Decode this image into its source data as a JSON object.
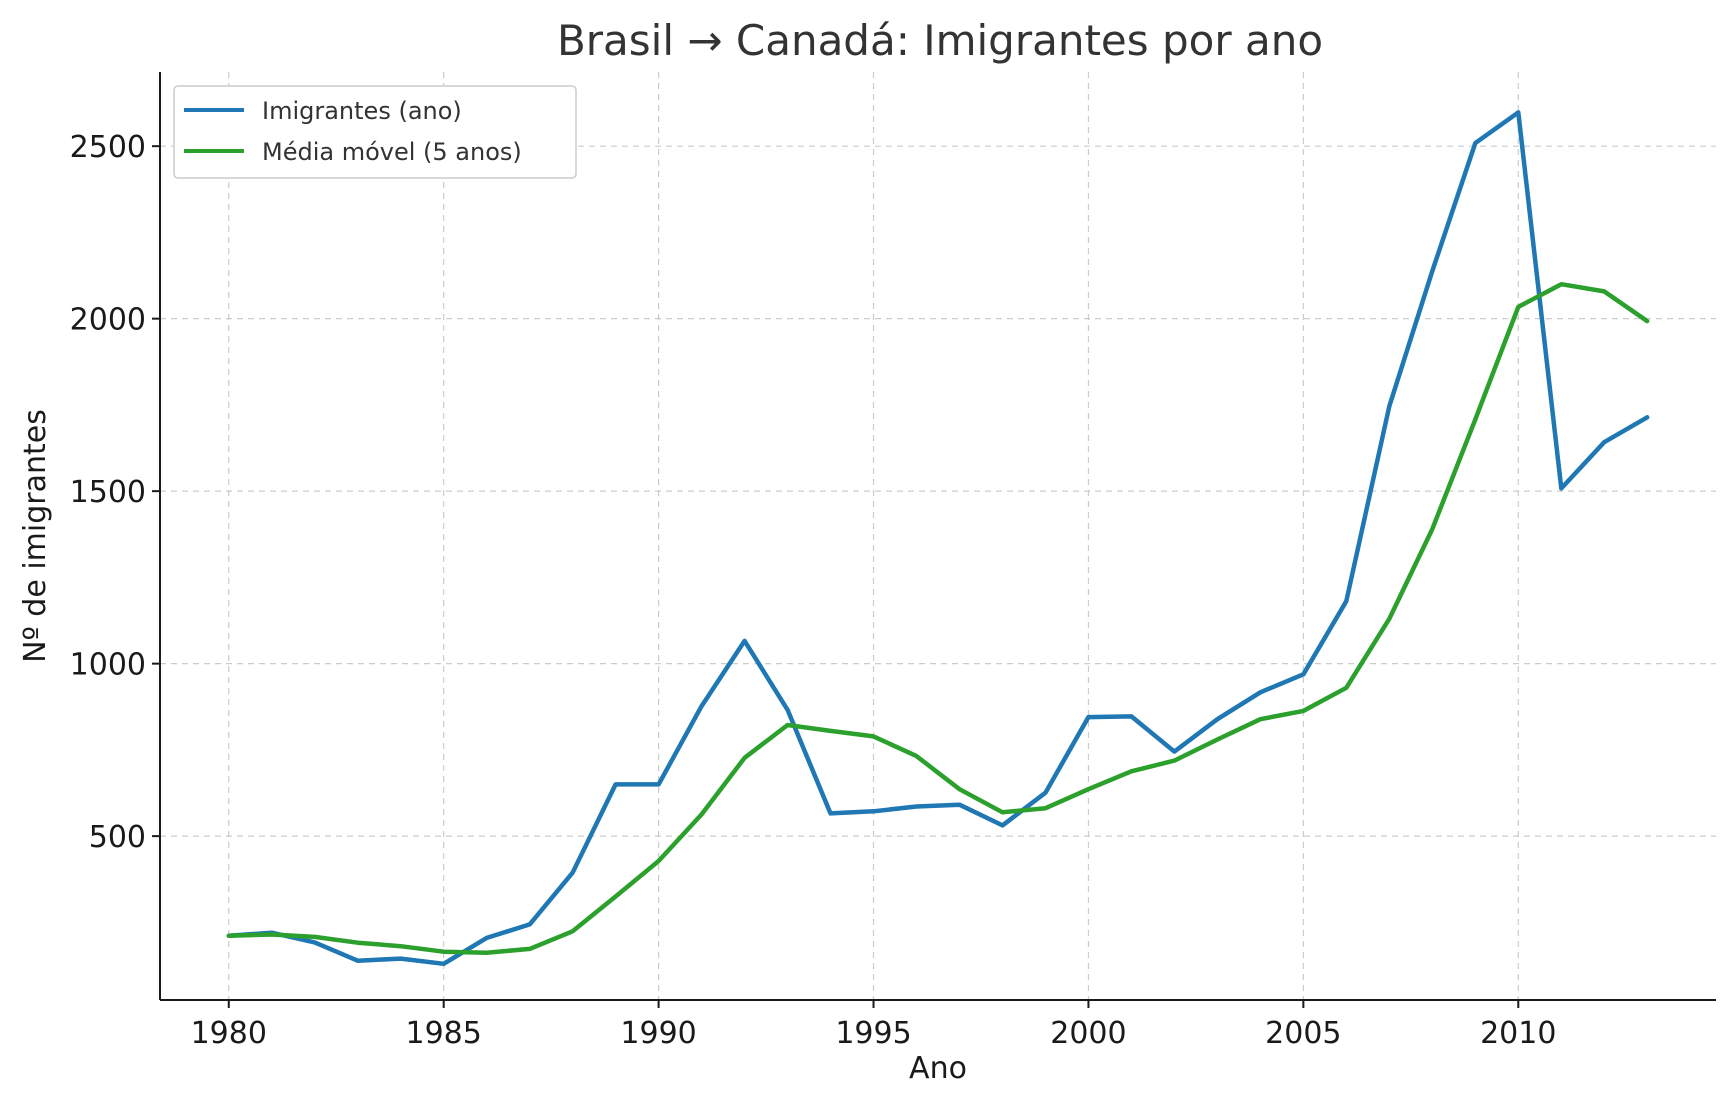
{
  "chart_data": {
    "type": "line",
    "title": "Brasil → Canadá: Imigrantes por ano",
    "xlabel": "Ano",
    "ylabel": "Nº de imigrantes",
    "xlim": [
      1978.4,
      2014.6
    ],
    "ylim": [
      25,
      2715
    ],
    "xticks": [
      1980,
      1985,
      1990,
      1995,
      2000,
      2005,
      2010
    ],
    "yticks": [
      500,
      1000,
      1500,
      2000,
      2500
    ],
    "grid": true,
    "legend_position": "top-left",
    "x": [
      1980,
      1981,
      1982,
      1983,
      1984,
      1985,
      1986,
      1987,
      1988,
      1989,
      1990,
      1991,
      1992,
      1993,
      1994,
      1995,
      1996,
      1997,
      1998,
      1999,
      2000,
      2001,
      2002,
      2003,
      2004,
      2005,
      2006,
      2007,
      2008,
      2009,
      2010,
      2011,
      2012,
      2013
    ],
    "series": [
      {
        "name": "Imigrantes (ano)",
        "color": "#1f77b4",
        "values": [
          211,
          220,
          192,
          139,
          145,
          130,
          205,
          244,
          394,
          650,
          650,
          877,
          1066,
          866,
          566,
          572,
          586,
          591,
          531,
          626,
          845,
          847,
          745,
          839,
          917,
          969,
          1181,
          1746,
          2138,
          2509,
          2598,
          1508,
          1642,
          1714
        ]
      },
      {
        "name": "Média móvel (5 anos)",
        "color": "#2ca02c",
        "values": [
          211,
          215,
          208,
          191,
          181,
          165,
          162,
          173,
          224,
          325,
          428,
          563,
          727,
          822,
          805,
          789,
          732,
          636,
          569,
          581,
          636,
          688,
          719,
          780,
          839,
          863,
          930,
          1130,
          1390,
          1708,
          2034,
          2100,
          2079,
          1993
        ]
      }
    ]
  }
}
